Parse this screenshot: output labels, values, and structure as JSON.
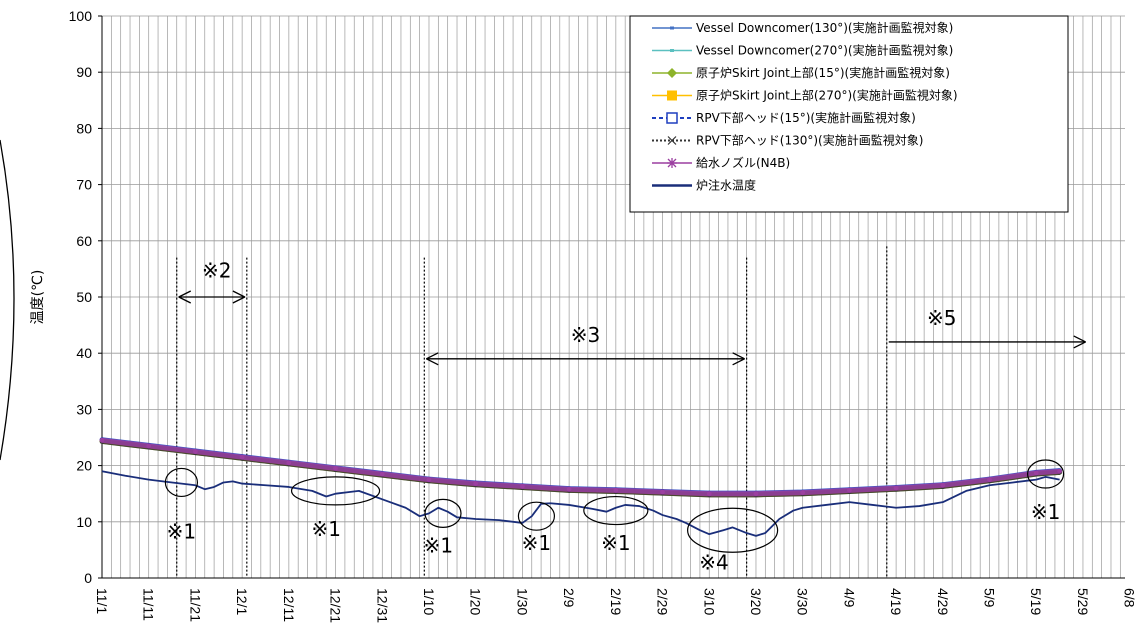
{
  "chart_data": {
    "type": "line",
    "title": "",
    "xlabel": "",
    "ylabel": "温度(℃)",
    "ylim": [
      0,
      100
    ],
    "yticks": [
      0,
      10,
      20,
      30,
      40,
      50,
      60,
      70,
      80,
      90,
      100
    ],
    "xrange_days": [
      0,
      219
    ],
    "xtick_labels": [
      {
        "label": "11/1",
        "day": 0
      },
      {
        "label": "11/11",
        "day": 10
      },
      {
        "label": "11/21",
        "day": 20
      },
      {
        "label": "12/1",
        "day": 30
      },
      {
        "label": "12/11",
        "day": 40
      },
      {
        "label": "12/21",
        "day": 50
      },
      {
        "label": "12/31",
        "day": 60
      },
      {
        "label": "1/10",
        "day": 70
      },
      {
        "label": "1/20",
        "day": 80
      },
      {
        "label": "1/30",
        "day": 90
      },
      {
        "label": "2/9",
        "day": 100
      },
      {
        "label": "2/19",
        "day": 110
      },
      {
        "label": "2/29",
        "day": 120
      },
      {
        "label": "3/10",
        "day": 130
      },
      {
        "label": "3/20",
        "day": 140
      },
      {
        "label": "3/30",
        "day": 150
      },
      {
        "label": "4/9",
        "day": 160
      },
      {
        "label": "4/19",
        "day": 170
      },
      {
        "label": "4/29",
        "day": 180
      },
      {
        "label": "5/9",
        "day": 190
      },
      {
        "label": "5/19",
        "day": 200
      },
      {
        "label": "5/29",
        "day": 210
      },
      {
        "label": "6/8",
        "day": 220
      }
    ],
    "legend_position": "top-right",
    "series": [
      {
        "name": "Vessel Downcomer(130°)(実施計画監視対象)",
        "color": "#4472C4",
        "marker": "small-dash",
        "x": [
          0,
          10,
          20,
          30,
          40,
          50,
          60,
          70,
          80,
          90,
          100,
          110,
          120,
          130,
          140,
          150,
          160,
          170,
          180,
          190,
          200,
          205
        ],
        "values": [
          24.5,
          23.5,
          22.5,
          21.5,
          20.5,
          19.5,
          18.5,
          17.5,
          16.8,
          16.3,
          15.8,
          15.6,
          15.3,
          15.0,
          15.0,
          15.2,
          15.6,
          16.0,
          16.5,
          17.5,
          18.7,
          19.0
        ]
      },
      {
        "name": "Vessel Downcomer(270°)(実施計画監視対象)",
        "color": "#5BC0C0",
        "marker": "small-dash",
        "x": [
          0,
          10,
          20,
          30,
          40,
          50,
          60,
          70,
          80,
          90,
          100,
          110,
          120,
          130,
          140,
          150,
          160,
          170,
          180,
          190,
          200,
          205
        ],
        "values": [
          24.4,
          23.4,
          22.4,
          21.4,
          20.4,
          19.4,
          18.4,
          17.4,
          16.7,
          16.2,
          15.7,
          15.5,
          15.2,
          14.9,
          14.9,
          15.1,
          15.5,
          15.9,
          16.4,
          17.4,
          18.6,
          18.9
        ]
      },
      {
        "name": "原子炉Skirt Joint上部(15°)(実施計画監視対象)",
        "color": "#8DB32B",
        "marker": "diamond",
        "x": [
          0,
          10,
          20,
          30,
          40,
          50,
          60,
          70,
          80,
          90,
          100,
          110,
          120,
          130,
          140,
          150,
          160,
          170,
          180,
          190,
          200,
          205
        ],
        "values": [
          24.3,
          23.3,
          22.3,
          21.3,
          20.3,
          19.3,
          18.3,
          17.3,
          16.6,
          16.1,
          15.6,
          15.4,
          15.1,
          14.8,
          14.8,
          15.0,
          15.4,
          15.8,
          16.3,
          17.3,
          18.5,
          18.8
        ]
      },
      {
        "name": "原子炉Skirt Joint上部(270°)(実施計画監視対象)",
        "color": "#FFC000",
        "marker": "square",
        "x": [
          0,
          10,
          20,
          30,
          40,
          50,
          60,
          70,
          80,
          90,
          100,
          110,
          120,
          130,
          140,
          150,
          160,
          170,
          180,
          190,
          200,
          205
        ],
        "values": [
          24.4,
          23.4,
          22.4,
          21.4,
          20.4,
          19.4,
          18.4,
          17.4,
          16.7,
          16.2,
          15.7,
          15.5,
          15.2,
          14.9,
          14.9,
          15.1,
          15.5,
          15.9,
          16.4,
          17.4,
          18.6,
          18.9
        ]
      },
      {
        "name": "RPV下部ヘッド(15°)(実施計画監視対象)",
        "color": "#1F3FBF",
        "marker": "open-square-dashed",
        "x": [
          0,
          10,
          20,
          30,
          40,
          50,
          60,
          70,
          80,
          90,
          100,
          110,
          120,
          130,
          140,
          150,
          160,
          170,
          180,
          190,
          200,
          205
        ],
        "values": [
          24.6,
          23.6,
          22.6,
          21.6,
          20.6,
          19.6,
          18.6,
          17.6,
          16.9,
          16.4,
          15.9,
          15.7,
          15.4,
          15.1,
          15.1,
          15.3,
          15.7,
          16.1,
          16.6,
          17.6,
          18.8,
          19.1
        ]
      },
      {
        "name": "RPV下部ヘッド(130°)(実施計画監視対象)",
        "color": "#333333",
        "marker": "x-dotted",
        "x": [
          0,
          10,
          20,
          30,
          40,
          50,
          60,
          70,
          80,
          90,
          100,
          110,
          120,
          130,
          140,
          150,
          160,
          170,
          180,
          190,
          200,
          205
        ],
        "values": [
          24.3,
          23.3,
          22.3,
          21.3,
          20.3,
          19.3,
          18.3,
          17.3,
          16.6,
          16.1,
          15.6,
          15.4,
          15.1,
          14.8,
          14.8,
          15.0,
          15.4,
          15.8,
          16.3,
          17.3,
          18.5,
          18.8
        ]
      },
      {
        "name": "給水ノズル(N4B)",
        "color": "#9B3FA0",
        "marker": "star",
        "x": [
          0,
          10,
          20,
          30,
          40,
          50,
          60,
          70,
          80,
          90,
          100,
          110,
          120,
          130,
          140,
          150,
          160,
          170,
          180,
          190,
          200,
          205
        ],
        "values": [
          24.5,
          23.5,
          22.5,
          21.5,
          20.5,
          19.5,
          18.5,
          17.5,
          16.8,
          16.3,
          15.8,
          15.6,
          15.3,
          15.0,
          15.0,
          15.2,
          15.6,
          16.0,
          16.5,
          17.5,
          18.7,
          19.0
        ]
      },
      {
        "name": "炉注水温度",
        "color": "#1A2E7A",
        "marker": "none",
        "x": [
          0,
          5,
          10,
          15,
          20,
          22,
          24,
          26,
          28,
          30,
          35,
          40,
          45,
          48,
          50,
          53,
          55,
          60,
          65,
          68,
          70,
          72,
          74,
          76,
          80,
          85,
          90,
          92,
          94,
          96,
          100,
          105,
          108,
          110,
          112,
          115,
          118,
          120,
          123,
          125,
          128,
          130,
          133,
          135,
          138,
          140,
          142,
          145,
          148,
          150,
          155,
          160,
          165,
          170,
          175,
          180,
          185,
          190,
          195,
          200,
          202,
          205
        ],
        "values": [
          19.0,
          18.2,
          17.5,
          17.0,
          16.5,
          15.8,
          16.2,
          17.0,
          17.2,
          16.8,
          16.5,
          16.2,
          15.5,
          14.5,
          15.0,
          15.3,
          15.5,
          14.0,
          12.5,
          11.0,
          11.5,
          12.5,
          11.8,
          10.8,
          10.5,
          10.3,
          9.8,
          11.0,
          13.2,
          13.3,
          13.0,
          12.3,
          11.8,
          12.5,
          13.0,
          12.8,
          12.0,
          11.2,
          10.5,
          9.8,
          8.5,
          7.8,
          8.5,
          9.0,
          8.0,
          7.5,
          8.0,
          10.5,
          12.0,
          12.5,
          13.0,
          13.5,
          13.0,
          12.5,
          12.8,
          13.5,
          15.5,
          16.5,
          17.0,
          17.5,
          18.0,
          17.5
        ]
      }
    ],
    "annotations": [
      {
        "text": "※1",
        "cx": 17,
        "cy": 17.0,
        "label_day": 17,
        "label_y": 7.0
      },
      {
        "text": "※1",
        "cx": 50,
        "cy": 15.5,
        "label_day": 48,
        "label_y": 7.5
      },
      {
        "text": "※1",
        "cx": 73,
        "cy": 11.5,
        "label_day": 72,
        "label_y": 4.5
      },
      {
        "text": "※1",
        "cx": 93,
        "cy": 11.0,
        "label_day": 93,
        "label_y": 5.0
      },
      {
        "text": "※1",
        "cx": 110,
        "cy": 12.0,
        "label_day": 110,
        "label_y": 5.0
      },
      {
        "text": "※4",
        "cx": 135,
        "cy": 8.5,
        "label_day": 131,
        "label_y": 1.5
      },
      {
        "text": "※1",
        "cx": 202,
        "cy": 18.5,
        "label_day": 202,
        "label_y": 10.5
      },
      {
        "text": "※2",
        "range_day": [
          16,
          31
        ],
        "arrow_y": 50,
        "label_y": 53.5,
        "vline_top": 57
      },
      {
        "text": "※3",
        "range_day": [
          69,
          138
        ],
        "arrow_y": 39,
        "label_y": 42,
        "vline_top": 57
      },
      {
        "text": "※5",
        "range_day": [
          168,
          211
        ],
        "arrow_y": 42,
        "label_y": 45,
        "vline_top": 59
      }
    ],
    "grid": true
  }
}
